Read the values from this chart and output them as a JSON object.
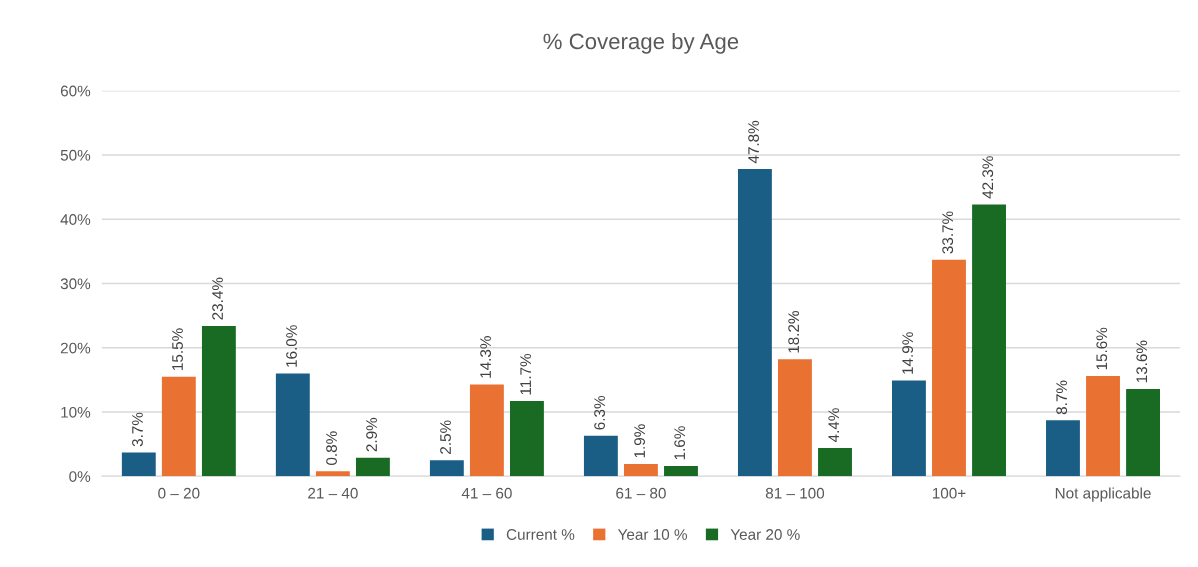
{
  "chart_data": {
    "type": "bar",
    "title": "% Coverage by Age",
    "categories": [
      "0 – 20",
      "21 – 40",
      "41 – 60",
      "61 – 80",
      "81 – 100",
      "100+",
      "Not applicable"
    ],
    "series": [
      {
        "name": "Current %",
        "color": "#1b5e85",
        "values": [
          3.7,
          16.0,
          2.5,
          6.3,
          47.8,
          14.9,
          8.7
        ],
        "value_labels": [
          "3.7%",
          "16.0%",
          "2.5%",
          "6.3%",
          "47.8%",
          "14.9%",
          "8.7%"
        ]
      },
      {
        "name": "Year 10 %",
        "color": "#e97132",
        "values": [
          15.5,
          0.8,
          14.3,
          1.9,
          18.2,
          33.7,
          15.6
        ],
        "value_labels": [
          "15.5%",
          "0.8%",
          "14.3%",
          "1.9%",
          "18.2%",
          "33.7%",
          "15.6%"
        ]
      },
      {
        "name": "Year 20 %",
        "color": "#196b24",
        "values": [
          23.4,
          2.9,
          11.7,
          1.6,
          4.4,
          42.3,
          13.6
        ],
        "value_labels": [
          "23.4%",
          "2.9%",
          "11.7%",
          "1.6%",
          "4.4%",
          "42.3%",
          "13.6%"
        ]
      }
    ],
    "ylim": [
      0,
      60
    ],
    "yticks": [
      {
        "value": 0,
        "label": "0%"
      },
      {
        "value": 10,
        "label": "10%"
      },
      {
        "value": 20,
        "label": "20%"
      },
      {
        "value": 30,
        "label": "30%"
      },
      {
        "value": 40,
        "label": "40%"
      },
      {
        "value": 50,
        "label": "50%"
      },
      {
        "value": 60,
        "label": "60%"
      }
    ],
    "grid": "y",
    "legend": "bottom"
  }
}
